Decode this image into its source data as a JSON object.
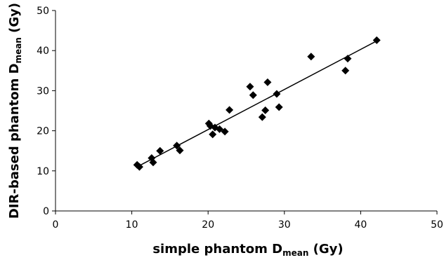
{
  "chart_data": {
    "type": "scatter",
    "xlabel": {
      "main": "simple phantom D",
      "sub": "mean",
      "unit": " (Gy)"
    },
    "ylabel": {
      "main": "DIR-based phantom D",
      "sub": "mean",
      "unit": " (Gy)"
    },
    "xlim": [
      0,
      50
    ],
    "ylim": [
      0,
      50
    ],
    "xticks": [
      0,
      10,
      20,
      30,
      40,
      50
    ],
    "yticks": [
      0,
      10,
      20,
      30,
      40,
      50
    ],
    "grid": false,
    "marker": "diamond",
    "marker_color": "#000000",
    "points": [
      [
        10.7,
        11.5
      ],
      [
        11.0,
        11.0
      ],
      [
        12.6,
        13.2
      ],
      [
        12.8,
        12.1
      ],
      [
        13.7,
        15.0
      ],
      [
        15.9,
        16.3
      ],
      [
        16.3,
        15.1
      ],
      [
        20.1,
        21.8
      ],
      [
        20.3,
        21.2
      ],
      [
        20.6,
        19.1
      ],
      [
        20.9,
        20.8
      ],
      [
        21.5,
        20.4
      ],
      [
        22.2,
        19.8
      ],
      [
        22.8,
        25.2
      ],
      [
        25.5,
        31.0
      ],
      [
        25.9,
        28.9
      ],
      [
        27.1,
        23.4
      ],
      [
        27.5,
        25.1
      ],
      [
        27.8,
        32.1
      ],
      [
        29.0,
        29.2
      ],
      [
        29.3,
        25.9
      ],
      [
        33.5,
        38.5
      ],
      [
        38.0,
        35.0
      ],
      [
        38.3,
        38.0
      ],
      [
        42.1,
        42.6
      ]
    ],
    "trendline": {
      "x": [
        10.7,
        42.1
      ],
      "y": [
        11.0,
        42.4
      ]
    }
  }
}
